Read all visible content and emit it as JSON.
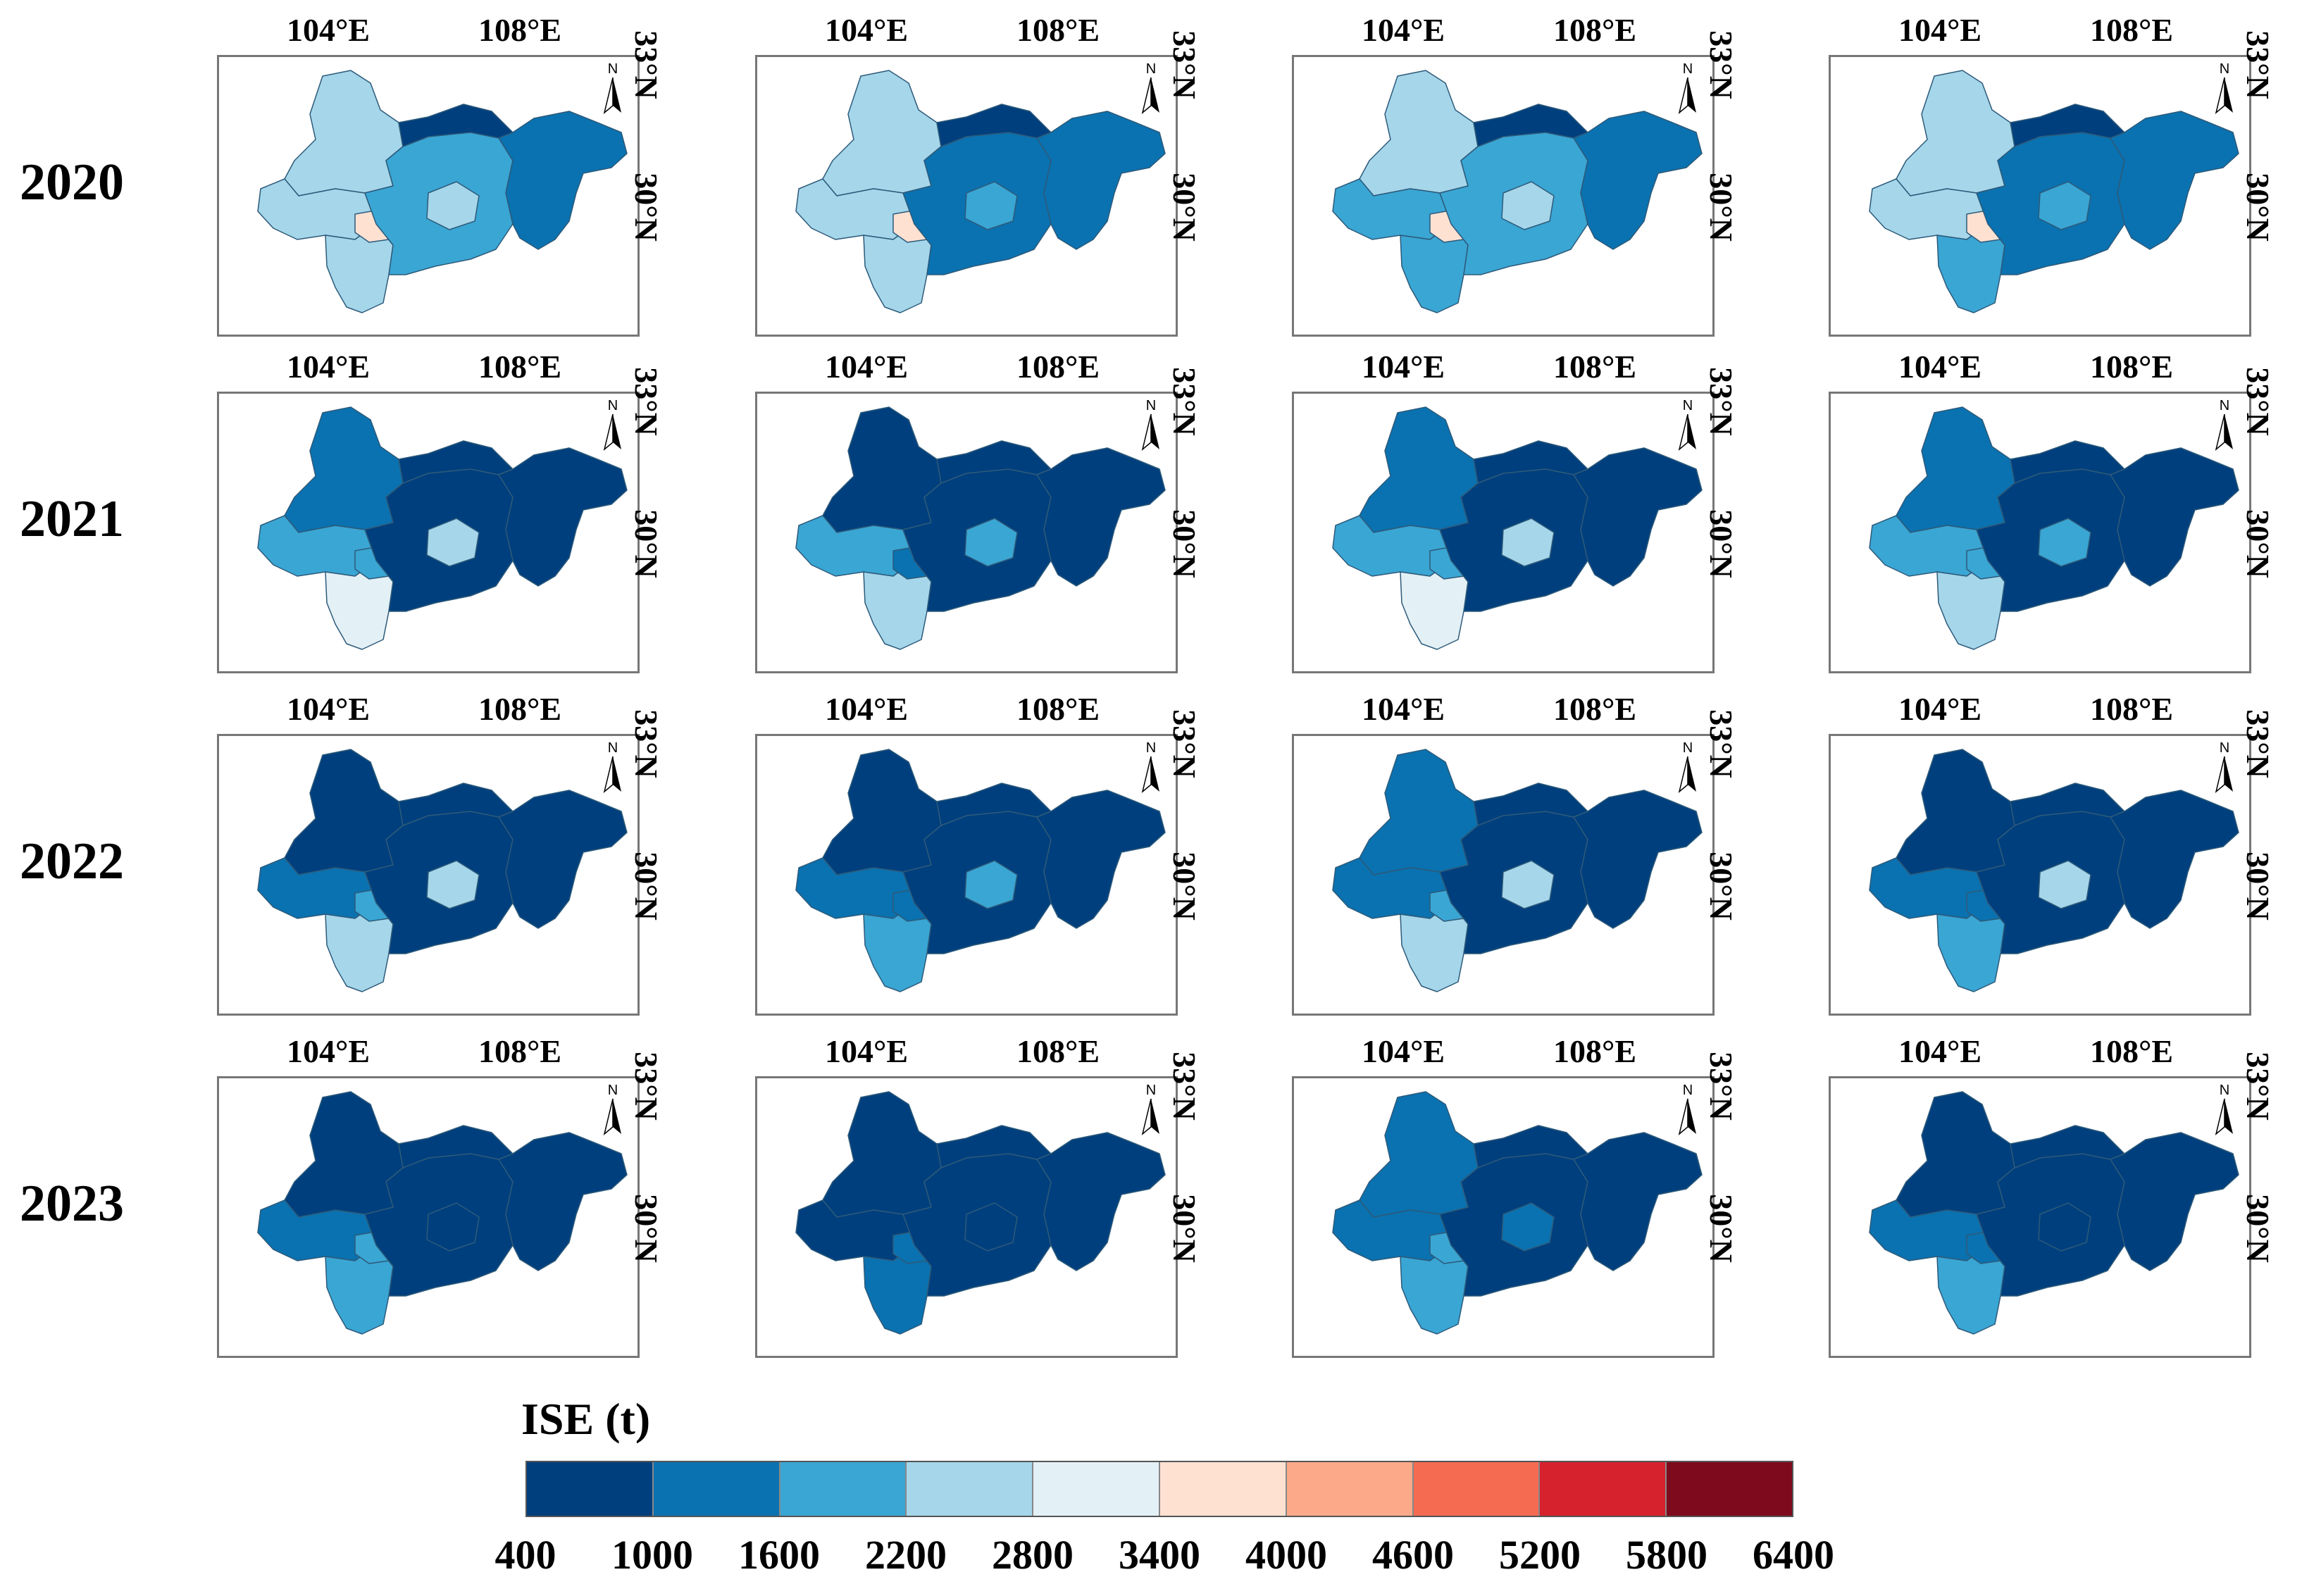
{
  "years": [
    "2020",
    "2021",
    "2022",
    "2023"
  ],
  "axis_labels": {
    "lon_left": "104°E",
    "lon_right": "108°E",
    "lat_top": "33°N",
    "lat_bottom": "30°N",
    "north": "N"
  },
  "legend": {
    "title": "ISE (t)",
    "ticks": [
      "400",
      "1000",
      "1600",
      "2200",
      "2800",
      "3400",
      "4000",
      "4600",
      "5200",
      "5800",
      "6400"
    ],
    "colors": [
      "#003f7d",
      "#0a72b0",
      "#3aa6d4",
      "#a5d6ea",
      "#e3f0f5",
      "#ffe1d2",
      "#fba989",
      "#f46b51",
      "#d5222d",
      "#7e0a1d"
    ],
    "border_color": "#888888"
  },
  "region_class_by_panel": {
    "note_classes": "index into legend.colors, per region: [NW, W, SW, center-west, center, center-east, north, east]",
    "2020": [
      [
        3,
        3,
        3,
        5,
        2,
        3,
        0,
        1
      ],
      [
        3,
        3,
        3,
        5,
        1,
        2,
        0,
        1
      ],
      [
        3,
        2,
        2,
        5,
        2,
        3,
        0,
        1
      ],
      [
        3,
        3,
        2,
        5,
        1,
        2,
        0,
        1
      ]
    ],
    "2021": [
      [
        1,
        2,
        4,
        2,
        0,
        3,
        0,
        0
      ],
      [
        0,
        2,
        3,
        1,
        0,
        2,
        0,
        0
      ],
      [
        1,
        2,
        4,
        2,
        0,
        3,
        0,
        0
      ],
      [
        1,
        2,
        3,
        2,
        0,
        2,
        0,
        0
      ]
    ],
    "2022": [
      [
        0,
        1,
        3,
        2,
        0,
        3,
        0,
        0
      ],
      [
        0,
        1,
        2,
        1,
        0,
        2,
        0,
        0
      ],
      [
        1,
        1,
        3,
        2,
        0,
        3,
        0,
        0
      ],
      [
        0,
        1,
        2,
        1,
        0,
        3,
        0,
        0
      ]
    ],
    "2023": [
      [
        0,
        1,
        2,
        2,
        0,
        0,
        0,
        0
      ],
      [
        0,
        0,
        1,
        1,
        0,
        0,
        0,
        0
      ],
      [
        1,
        1,
        2,
        2,
        0,
        1,
        0,
        0
      ],
      [
        0,
        1,
        2,
        1,
        0,
        0,
        0,
        0
      ]
    ]
  }
}
